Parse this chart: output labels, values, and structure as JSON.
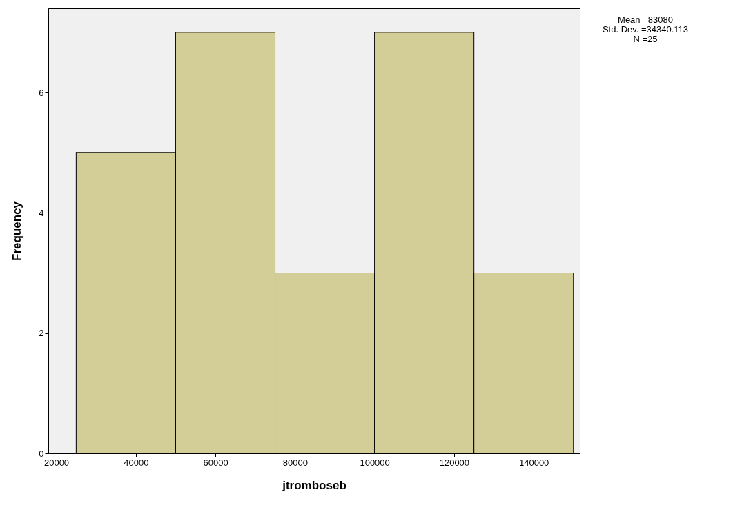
{
  "chart_data": {
    "type": "histogram",
    "xlabel": "jtromboseb",
    "ylabel": "Frequency",
    "bins": [
      25000,
      50000,
      75000,
      100000,
      125000,
      150000
    ],
    "values": [
      5,
      7,
      3,
      7,
      3
    ],
    "color": "#d3ce97",
    "xlim": [
      18000,
      151600
    ],
    "xticks": [
      20000,
      40000,
      60000,
      80000,
      100000,
      120000,
      140000
    ],
    "ylim": [
      0,
      7.4
    ],
    "yticks": [
      0,
      2,
      4,
      6
    ],
    "grid": false,
    "annotations": [
      "Mean =83080",
      "Std. Dev. =34340.113",
      "N =25"
    ]
  }
}
